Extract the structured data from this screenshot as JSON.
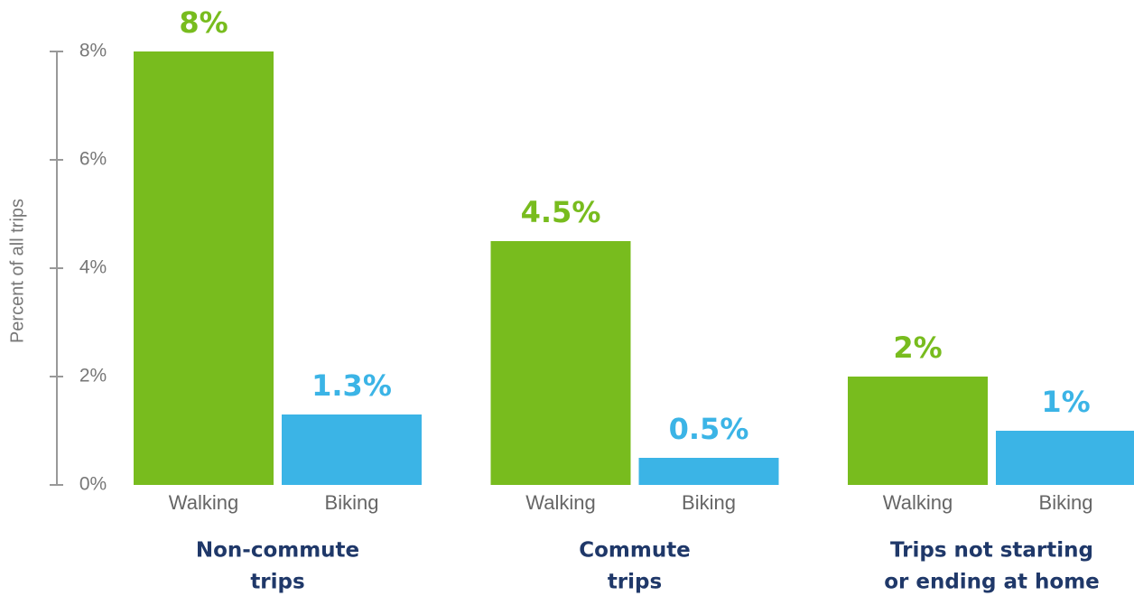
{
  "chart_data": {
    "type": "grouped_bar",
    "y_label": "Percent of all trips",
    "categories": [
      [
        "Non-commute",
        "trips"
      ],
      [
        "Commute",
        "trips"
      ],
      [
        "Trips not starting",
        "or ending at home"
      ]
    ],
    "series": [
      {
        "name": "Walking",
        "color": "#78bc1e",
        "values": [
          8,
          4.5,
          2
        ],
        "value_labels": [
          "8%",
          "4.5%",
          "2%"
        ]
      },
      {
        "name": "Biking",
        "color": "#3bb4e6",
        "values": [
          1.3,
          0.5,
          1
        ],
        "value_labels": [
          "1.3%",
          "0.5%",
          "1%"
        ]
      }
    ],
    "ylim": [
      0,
      8
    ],
    "yticks": [
      {
        "value": 0,
        "label": "0%"
      },
      {
        "value": 2,
        "label": "2%"
      },
      {
        "value": 4,
        "label": "4%"
      },
      {
        "value": 6,
        "label": "6%"
      },
      {
        "value": 8,
        "label": "8%"
      }
    ]
  }
}
